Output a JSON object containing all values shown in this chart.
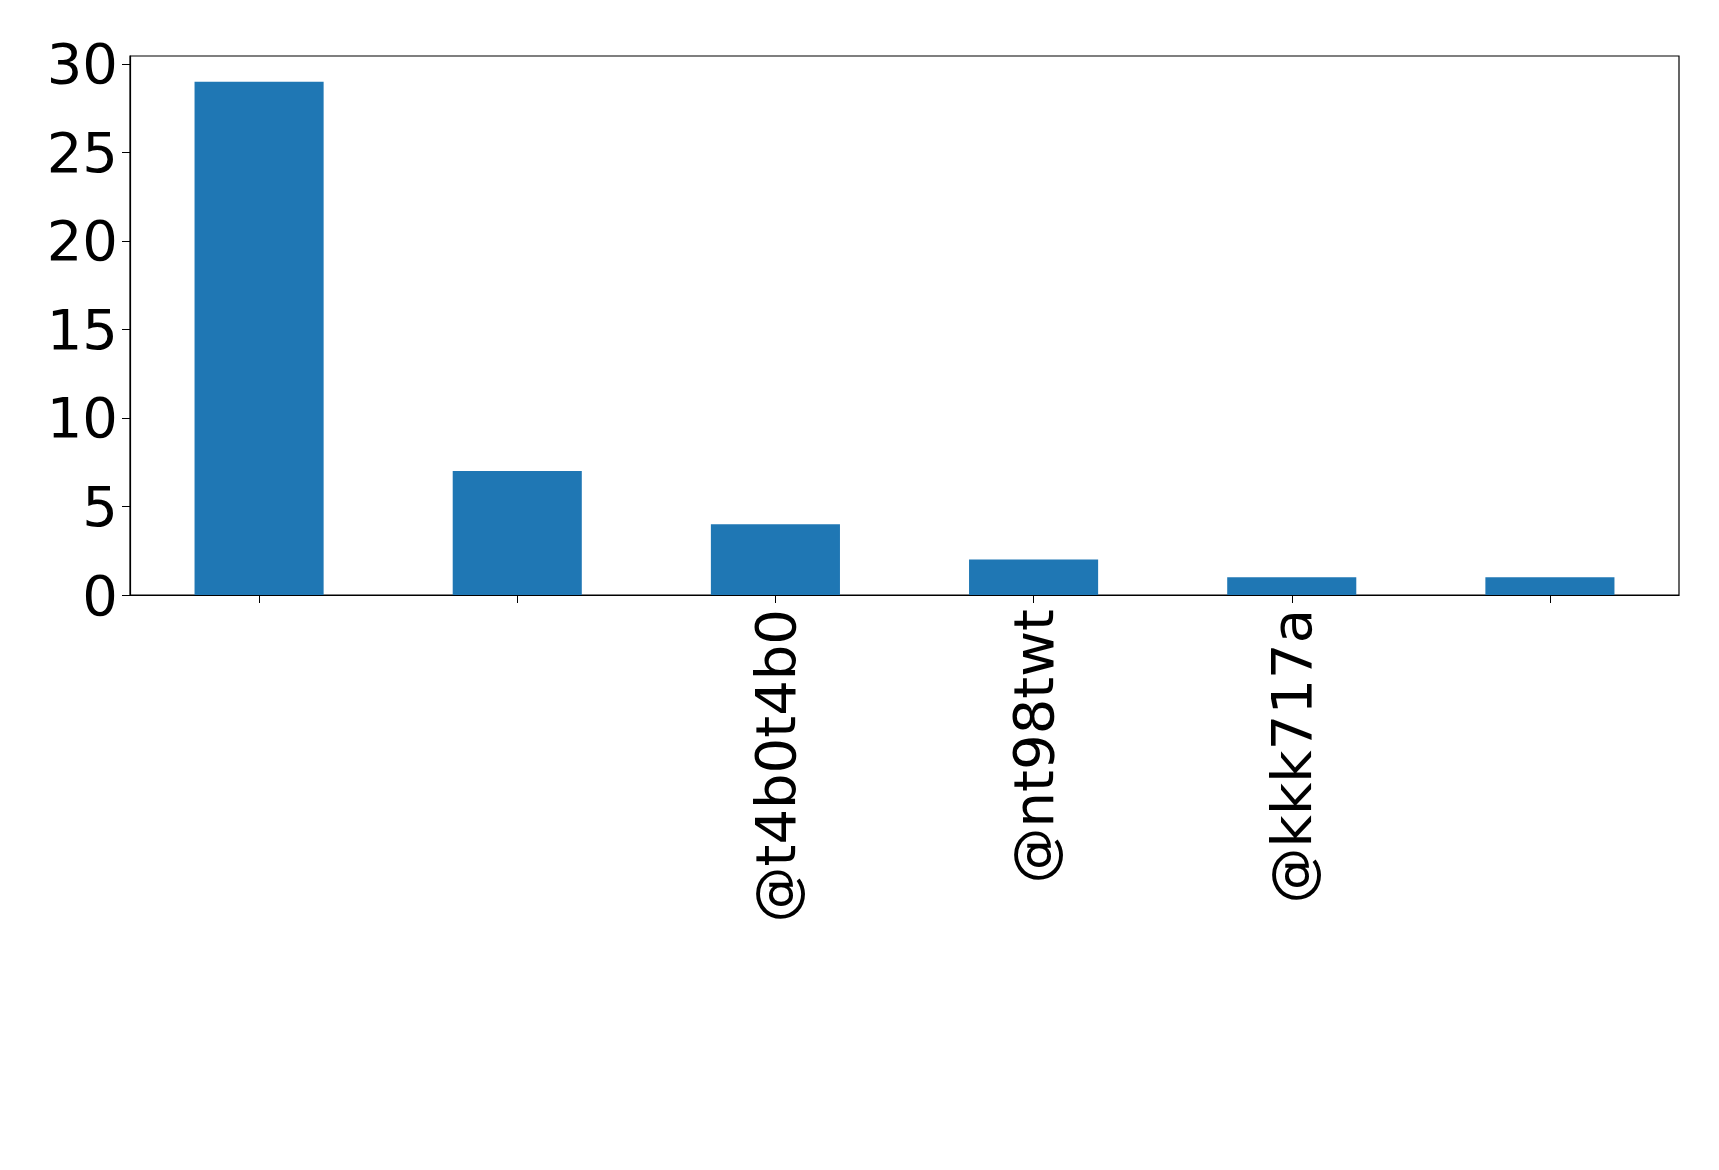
{
  "chart_data": {
    "type": "bar",
    "categories": [
      null,
      null,
      "@t4b0t4b0",
      "@nt98twt",
      "@kkk717a",
      null
    ],
    "values": [
      29,
      7,
      4,
      2,
      1,
      1
    ],
    "color": "#1f77b4",
    "ylim": [
      0,
      30.45
    ],
    "yticks": [
      0,
      5,
      10,
      15,
      20,
      25,
      30
    ],
    "grid": false
  }
}
